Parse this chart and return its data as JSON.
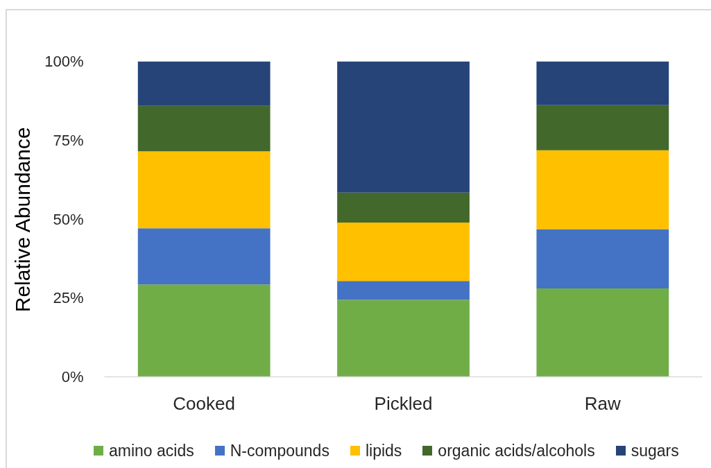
{
  "chart_data": {
    "type": "bar",
    "stacked": true,
    "ylabel": "Relative Abundance",
    "categories": [
      "Cooked",
      "Pickled",
      "Raw"
    ],
    "series": [
      {
        "name": "amino acids",
        "color": "#70ad47",
        "values": [
          29.3,
          24.4,
          28.0
        ]
      },
      {
        "name": "N-compounds",
        "color": "#4472c4",
        "values": [
          17.8,
          6.0,
          18.8
        ]
      },
      {
        "name": "lipids",
        "color": "#ffc000",
        "values": [
          24.4,
          18.5,
          25.0
        ]
      },
      {
        "name": "organic acids/alcohols",
        "color": "#43682b",
        "values": [
          14.4,
          9.5,
          14.3
        ]
      },
      {
        "name": "sugars",
        "color": "#264478",
        "values": [
          14.1,
          41.6,
          13.9
        ]
      }
    ],
    "ylim": [
      0,
      100
    ],
    "yticks": [
      {
        "value": 0,
        "label": "0%"
      },
      {
        "value": 25,
        "label": "25%"
      },
      {
        "value": 50,
        "label": "50%"
      },
      {
        "value": 75,
        "label": "75%"
      },
      {
        "value": 100,
        "label": "100%"
      }
    ],
    "legend": "bottom"
  }
}
